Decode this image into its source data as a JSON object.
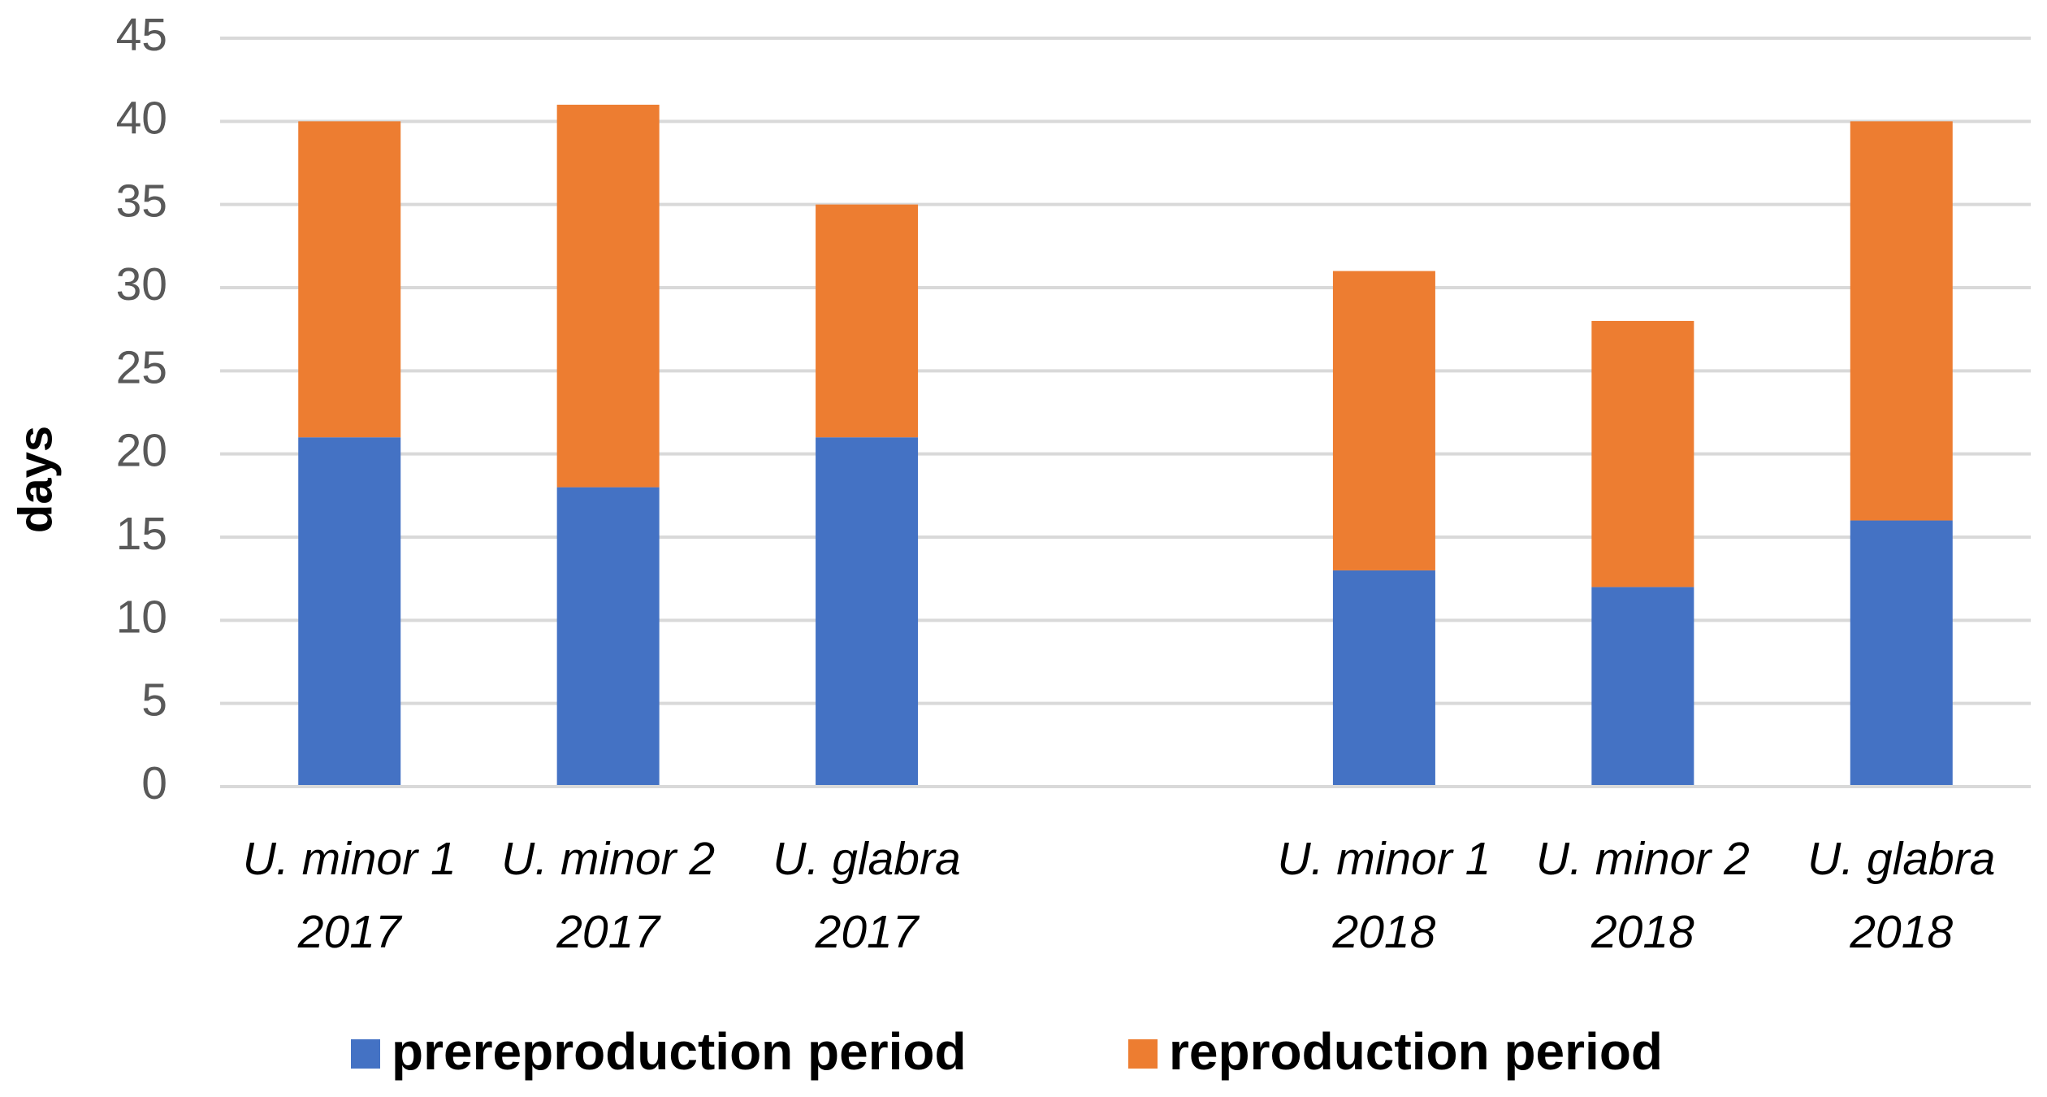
{
  "chart_data": {
    "type": "stacked_bar",
    "ylabel": "days",
    "categories": [
      "U. minor 1 2017",
      "U. minor 2 2017",
      "U. glabra 2017",
      null,
      "U. minor 1 2018",
      "U. minor 2 2018",
      "U. glabra 2018"
    ],
    "series": [
      {
        "name": "prereproduction period",
        "color": "#4472c4",
        "values": [
          21,
          18,
          21,
          null,
          13,
          12,
          16
        ]
      },
      {
        "name": "reproduction period",
        "color": "#ed7d31",
        "values": [
          19,
          23,
          14,
          null,
          18,
          16,
          24
        ]
      }
    ],
    "ylim": [
      0,
      45
    ],
    "yticks": [
      0,
      5,
      10,
      15,
      20,
      25,
      30,
      35,
      40,
      45
    ],
    "grid": true,
    "legend": "bottom"
  }
}
